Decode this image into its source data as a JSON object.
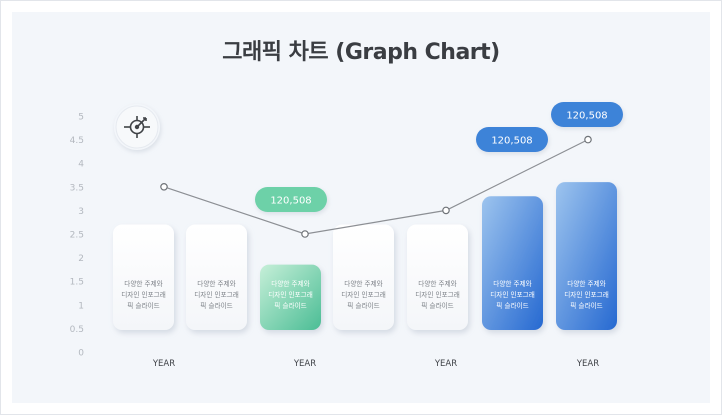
{
  "title": "그래픽 차트 (Graph Chart)",
  "icon": "target-arrow-icon",
  "colors": {
    "blue_top": "#8fbbe9",
    "blue_bottom": "#2a74d6",
    "green_top": "#b8eacd",
    "green_bottom": "#52c29b",
    "white_card": "#fbfcfd",
    "badge_blue": "#3d83d8",
    "badge_green": "#6dd1a8",
    "line": "#8c8f94"
  },
  "chart_data": {
    "type": "bar",
    "title": "그래픽 차트 (Graph Chart)",
    "ylim": [
      0,
      5
    ],
    "y_ticks": [
      "0",
      "0.5",
      "1",
      "1.5",
      "2",
      "2.5",
      "3",
      "3.5",
      "4",
      "4.5",
      "5"
    ],
    "x_labels": [
      "YEAR",
      "YEAR",
      "YEAR",
      "YEAR"
    ],
    "bars": [
      {
        "value": 2.7,
        "style": "white",
        "text": [
          "다양한 주제와",
          "디자인 인포그래",
          "픽 슬라이드"
        ]
      },
      {
        "value": 2.7,
        "style": "white",
        "text": [
          "다양한 주제와",
          "디자인 인포그래",
          "픽 슬라이드"
        ]
      },
      {
        "value": 1.85,
        "style": "green",
        "text": [
          "다양한 주제와",
          "디자인 인포그래",
          "픽 슬라이드"
        ]
      },
      {
        "value": 2.7,
        "style": "white",
        "text": [
          "다양한 주제와",
          "디자인 인포그래",
          "픽 슬라이드"
        ]
      },
      {
        "value": 2.7,
        "style": "white",
        "text": [
          "다양한 주제와",
          "디자인 인포그래",
          "픽 슬라이드"
        ]
      },
      {
        "value": 3.3,
        "style": "blue",
        "text": [
          "다양한 주제와",
          "디자인 인포그래",
          "픽 슬라이드"
        ]
      },
      {
        "value": 3.6,
        "style": "blue",
        "text": [
          "다양한 주제와",
          "디자인 인포그래",
          "픽 슬라이드"
        ]
      }
    ],
    "line": {
      "x_index": [
        0,
        2,
        4,
        6
      ],
      "values": [
        3.5,
        2.5,
        3.0,
        4.5
      ]
    },
    "badges": [
      {
        "bar_index": 2,
        "label": "120,508",
        "style": "green"
      },
      {
        "bar_index": 5,
        "label": "120,508",
        "style": "blue"
      },
      {
        "bar_index": 6,
        "label": "120,508",
        "style": "blue"
      }
    ]
  }
}
